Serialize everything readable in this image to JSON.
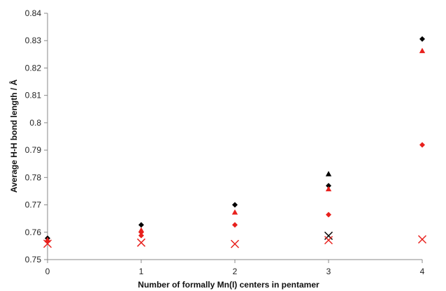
{
  "chart_data": {
    "type": "scatter",
    "title": "",
    "xlabel": "Number of formally Mn(I) centers in pentamer",
    "ylabel": "Average H-H bond length / Å",
    "xlim": [
      0,
      4
    ],
    "ylim": [
      0.75,
      0.84
    ],
    "x_ticks": [
      "0",
      "1",
      "2",
      "3",
      "4"
    ],
    "y_ticks": [
      "0.75",
      "0.76",
      "0.77",
      "0.78",
      "0.79",
      "0.8",
      "0.81",
      "0.82",
      "0.83",
      "0.84"
    ],
    "grid": false,
    "legend": "none",
    "series": [
      {
        "marker": "diamond",
        "color": "#000000",
        "points": [
          [
            0,
            0.7578
          ],
          [
            1,
            0.7627
          ],
          [
            2,
            0.77
          ],
          [
            3,
            0.777
          ],
          [
            4,
            0.8306
          ]
        ]
      },
      {
        "marker": "triangle",
        "color": "#000000",
        "points": [
          [
            3,
            0.7813
          ]
        ]
      },
      {
        "marker": "triangle",
        "color": "#e8211d",
        "points": [
          [
            0,
            0.7572
          ],
          [
            1,
            0.7608
          ],
          [
            2,
            0.7673
          ],
          [
            3,
            0.7758
          ],
          [
            4,
            0.8263
          ]
        ]
      },
      {
        "marker": "diamond",
        "color": "#e8211d",
        "points": [
          [
            0,
            0.7568
          ],
          [
            1,
            0.76
          ],
          [
            1,
            0.7588
          ],
          [
            2,
            0.7627
          ],
          [
            3,
            0.7664
          ],
          [
            4,
            0.7919
          ]
        ]
      },
      {
        "marker": "x",
        "color": "#000000",
        "points": [
          [
            3,
            0.7587
          ]
        ]
      },
      {
        "marker": "x",
        "color": "#e8211d",
        "points": [
          [
            0,
            0.7558
          ],
          [
            1,
            0.7562
          ],
          [
            2,
            0.7557
          ],
          [
            3,
            0.7571
          ],
          [
            4,
            0.7574
          ]
        ]
      }
    ]
  }
}
